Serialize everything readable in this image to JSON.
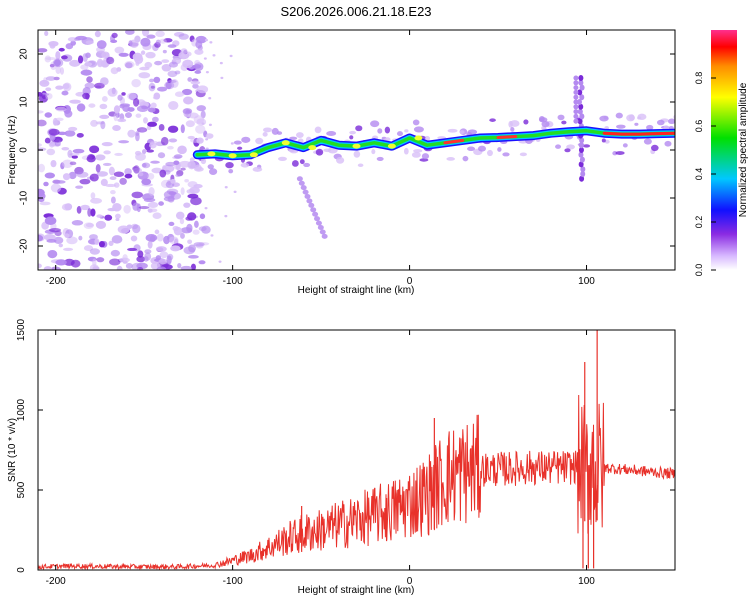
{
  "title": "S206.2026.006.21.18.E23",
  "colors": {
    "snr_line": "#e8312a",
    "frame": "#000000",
    "scatter_light": "#d8bff8",
    "scatter_mid": "#b48af0",
    "scatter_dark": "#7a2bd8"
  },
  "chart_data": [
    {
      "type": "heatmap",
      "panel": "top",
      "title": "S206.2026.006.21.18.E23",
      "xlabel": "Height of straight line (km)",
      "ylabel": "Frequency (Hz)",
      "xlim": [
        -210,
        150
      ],
      "ylim": [
        -25,
        25
      ],
      "xticks": [
        -200,
        -100,
        0,
        100
      ],
      "yticks": [
        -20,
        -10,
        0,
        10,
        20
      ],
      "colorbar": {
        "label": "Normalized spectral amplitude",
        "range": [
          0.0,
          1.0
        ],
        "ticks": [
          "0.0",
          "0.2",
          "0.4",
          "0.6",
          "0.8"
        ],
        "tick_values": [
          0.0,
          0.2,
          0.4,
          0.6,
          0.8
        ]
      },
      "ridge": [
        {
          "x": -120,
          "y": -1.0
        },
        {
          "x": -110,
          "y": -0.8
        },
        {
          "x": -100,
          "y": -1.2
        },
        {
          "x": -90,
          "y": -1.0
        },
        {
          "x": -80,
          "y": 0.5
        },
        {
          "x": -70,
          "y": 1.5
        },
        {
          "x": -60,
          "y": 0.5
        },
        {
          "x": -50,
          "y": 2.0
        },
        {
          "x": -40,
          "y": 1.0
        },
        {
          "x": -30,
          "y": 0.8
        },
        {
          "x": -20,
          "y": 1.5
        },
        {
          "x": -10,
          "y": 0.8
        },
        {
          "x": 0,
          "y": 2.5
        },
        {
          "x": 10,
          "y": 1.0
        },
        {
          "x": 20,
          "y": 1.5
        },
        {
          "x": 30,
          "y": 2.0
        },
        {
          "x": 40,
          "y": 2.5
        },
        {
          "x": 50,
          "y": 2.6
        },
        {
          "x": 60,
          "y": 2.8
        },
        {
          "x": 70,
          "y": 3.0
        },
        {
          "x": 80,
          "y": 3.5
        },
        {
          "x": 90,
          "y": 3.8
        },
        {
          "x": 100,
          "y": 4.0
        },
        {
          "x": 110,
          "y": 3.5
        },
        {
          "x": 120,
          "y": 3.3
        },
        {
          "x": 130,
          "y": 3.3
        },
        {
          "x": 140,
          "y": 3.4
        },
        {
          "x": 150,
          "y": 3.5
        }
      ]
    },
    {
      "type": "line",
      "panel": "bottom",
      "xlabel": "Height of straight line (km)",
      "ylabel": "SNR (10 * v/v)",
      "xlim": [
        -210,
        150
      ],
      "ylim": [
        0,
        1500
      ],
      "xticks": [
        -200,
        -100,
        0,
        100
      ],
      "yticks": [
        0,
        500,
        1000,
        1500
      ],
      "series": [
        {
          "name": "SNR",
          "x": [
            -210,
            -190,
            -170,
            -150,
            -130,
            -110,
            -100,
            -90,
            -80,
            -70,
            -60,
            -50,
            -40,
            -30,
            -20,
            -10,
            0,
            10,
            15,
            20,
            30,
            40,
            50,
            60,
            70,
            80,
            90,
            95,
            100,
            103,
            106,
            110,
            120,
            130,
            140,
            150
          ],
          "values": [
            20,
            25,
            22,
            20,
            20,
            30,
            60,
            90,
            140,
            190,
            230,
            250,
            280,
            310,
            340,
            370,
            420,
            470,
            520,
            580,
            610,
            630,
            630,
            635,
            640,
            640,
            640,
            650,
            600,
            700,
            620,
            640,
            630,
            620,
            610,
            600
          ]
        }
      ],
      "spikes": [
        {
          "x": -61,
          "value": 400
        },
        {
          "x": -13,
          "value": 450
        },
        {
          "x": 14,
          "value": 950
        },
        {
          "x": 99,
          "value": 1300
        },
        {
          "x": 106,
          "value": 1500
        }
      ]
    }
  ]
}
